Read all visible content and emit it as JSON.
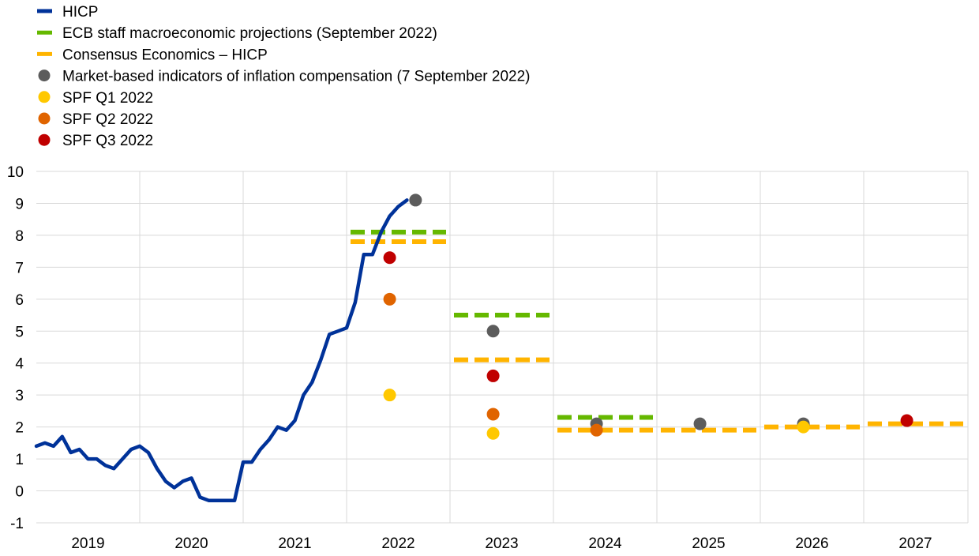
{
  "chart_data": {
    "type": "line",
    "title": "",
    "xlabel": "",
    "ylabel": "",
    "ylim": [
      -1,
      10
    ],
    "yticks": [
      -1,
      0,
      1,
      2,
      3,
      4,
      5,
      6,
      7,
      8,
      9,
      10
    ],
    "year_labels": [
      "2019",
      "2020",
      "2021",
      "2022",
      "2023",
      "2024",
      "2025",
      "2026",
      "2027"
    ],
    "grid": true,
    "legend_position": "top-left",
    "legend": [
      {
        "label": "HICP",
        "marker": "line",
        "color": "#003299"
      },
      {
        "label": "ECB staff macroeconomic projections (September 2022)",
        "marker": "dash",
        "color": "#65b800"
      },
      {
        "label": "Consensus Economics – HICP",
        "marker": "dash",
        "color": "#ffb400"
      },
      {
        "label": "Market-based indicators of inflation compensation (7 September 2022)",
        "marker": "dot",
        "color": "#5c5c5c"
      },
      {
        "label": "SPF Q1 2022",
        "marker": "dot",
        "color": "#ffc800"
      },
      {
        "label": "SPF Q2 2022",
        "marker": "dot",
        "color": "#e06400"
      },
      {
        "label": "SPF Q3 2022",
        "marker": "dot",
        "color": "#c00000"
      }
    ],
    "hicp": {
      "name": "HICP",
      "color": "#003299",
      "x": [
        "2019-01",
        "2019-02",
        "2019-03",
        "2019-04",
        "2019-05",
        "2019-06",
        "2019-07",
        "2019-08",
        "2019-09",
        "2019-10",
        "2019-11",
        "2019-12",
        "2020-01",
        "2020-02",
        "2020-03",
        "2020-04",
        "2020-05",
        "2020-06",
        "2020-07",
        "2020-08",
        "2020-09",
        "2020-10",
        "2020-11",
        "2020-12",
        "2021-01",
        "2021-02",
        "2021-03",
        "2021-04",
        "2021-05",
        "2021-06",
        "2021-07",
        "2021-08",
        "2021-09",
        "2021-10",
        "2021-11",
        "2021-12",
        "2022-01",
        "2022-02",
        "2022-03",
        "2022-04",
        "2022-05",
        "2022-06",
        "2022-07",
        "2022-08"
      ],
      "values": [
        1.4,
        1.5,
        1.4,
        1.7,
        1.2,
        1.3,
        1.0,
        1.0,
        0.8,
        0.7,
        1.0,
        1.3,
        1.4,
        1.2,
        0.7,
        0.3,
        0.1,
        0.3,
        0.4,
        -0.2,
        -0.3,
        -0.3,
        -0.3,
        -0.3,
        0.9,
        0.9,
        1.3,
        1.6,
        2.0,
        1.9,
        2.2,
        3.0,
        3.4,
        4.1,
        4.9,
        5.0,
        5.1,
        5.9,
        7.4,
        7.4,
        8.1,
        8.6,
        8.9,
        9.1
      ]
    },
    "projections": [
      {
        "name": "ECB staff macroeconomic projections (September 2022)",
        "color": "#65b800",
        "points": [
          {
            "year": "2022",
            "value": 8.1
          },
          {
            "year": "2023",
            "value": 5.5
          },
          {
            "year": "2024",
            "value": 2.3
          }
        ]
      },
      {
        "name": "Consensus Economics – HICP",
        "color": "#ffb400",
        "points": [
          {
            "year": "2022",
            "value": 7.8
          },
          {
            "year": "2023",
            "value": 4.1
          },
          {
            "year": "2024",
            "value": 1.9
          },
          {
            "year": "2025",
            "value": 1.9
          },
          {
            "year": "2026",
            "value": 2.0
          },
          {
            "year": "2027",
            "value": 2.1
          }
        ]
      }
    ],
    "markers": [
      {
        "name": "Market-based indicators of inflation compensation (7 September 2022)",
        "color": "#5c5c5c",
        "points": [
          {
            "x": "2022-09",
            "value": 9.1
          },
          {
            "x": "2023-06",
            "value": 5.0
          },
          {
            "x": "2024-06",
            "value": 2.1
          },
          {
            "x": "2025-06",
            "value": 2.1
          },
          {
            "x": "2026-06",
            "value": 2.1
          }
        ]
      },
      {
        "name": "SPF Q1 2022",
        "color": "#ffc800",
        "points": [
          {
            "x": "2022-06",
            "value": 3.0
          },
          {
            "x": "2023-06",
            "value": 1.8
          },
          {
            "x": "2026-06",
            "value": 2.0
          }
        ]
      },
      {
        "name": "SPF Q2 2022",
        "color": "#e06400",
        "points": [
          {
            "x": "2022-06",
            "value": 6.0
          },
          {
            "x": "2023-06",
            "value": 2.4
          },
          {
            "x": "2024-06",
            "value": 1.9
          }
        ]
      },
      {
        "name": "SPF Q3 2022",
        "color": "#c00000",
        "points": [
          {
            "x": "2022-06",
            "value": 7.3
          },
          {
            "x": "2023-06",
            "value": 3.6
          },
          {
            "x": "2027-06",
            "value": 2.2
          }
        ]
      }
    ]
  }
}
